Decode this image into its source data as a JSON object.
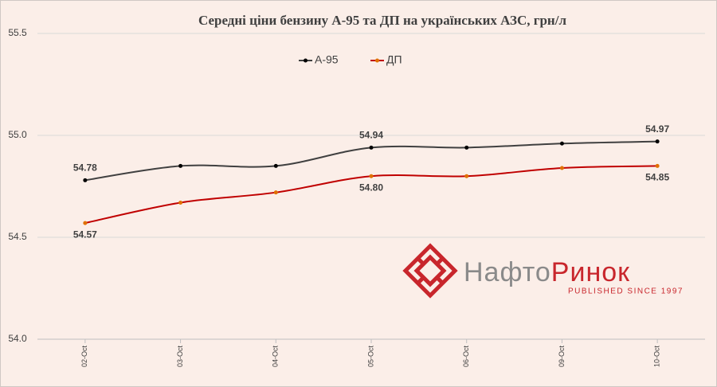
{
  "chart_data": {
    "type": "line",
    "title": "Середні ціни бензину А-95 та ДП на українських АЗС, грн/л",
    "categories": [
      "02-Oct",
      "03-Oct",
      "04-Oct",
      "05-Oct",
      "06-Oct",
      "09-Oct",
      "10-Oct"
    ],
    "series": [
      {
        "name": "А-95",
        "color": "#404040",
        "values": [
          54.78,
          54.85,
          54.85,
          54.94,
          54.94,
          54.96,
          54.97
        ],
        "value_labels": [
          "54.78",
          null,
          null,
          "54.94",
          null,
          null,
          "54.97"
        ]
      },
      {
        "name": "ДП",
        "color": "#c00000",
        "values": [
          54.57,
          54.67,
          54.72,
          54.8,
          54.8,
          54.84,
          54.85
        ],
        "value_labels": [
          "54.57",
          null,
          null,
          "54.80",
          null,
          null,
          "54.85"
        ]
      }
    ],
    "ylim": [
      54,
      55.5
    ],
    "yticks": [
      {
        "value": 54,
        "label": "54.0"
      },
      54.5,
      {
        "value": 55,
        "label": "55.0"
      },
      55.5
    ],
    "grid": true,
    "legend": "top",
    "smooth": true
  },
  "logo": {
    "text_1": "Нафто",
    "text_2": "Ринок",
    "tagline": "PUBLISHED SINCE 1997"
  }
}
